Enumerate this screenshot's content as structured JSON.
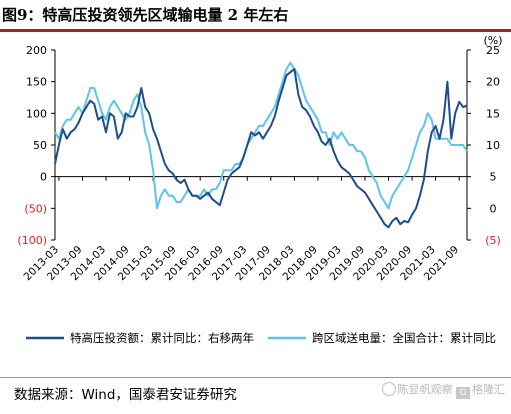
{
  "title": "图9：特高压投资领先区域输电量 2 年左右",
  "source": "数据来源：Wind，国泰君安证券研究",
  "watermark": {
    "text1": "陈显帆观察",
    "text2": "格隆汇",
    "badge": "G"
  },
  "colors": {
    "series1": "#1f4e8c",
    "series2": "#5ec4ea",
    "negative": "#e02020",
    "axis": "#000000",
    "rule": "#b11c1c"
  },
  "chart_data": {
    "type": "line",
    "left_axis": {
      "unit": "",
      "ticks": [
        -100,
        -50,
        0,
        50,
        100,
        150,
        200
      ],
      "tick_labels": [
        "(100)",
        "(50)",
        "0",
        "50",
        "100",
        "150",
        "200"
      ],
      "ylim": [
        -100,
        200
      ]
    },
    "right_axis": {
      "unit": "(%)",
      "ticks": [
        -5,
        0,
        5,
        10,
        15,
        20,
        25
      ],
      "tick_labels": [
        "(5)",
        "0",
        "5",
        "10",
        "15",
        "20",
        "25"
      ],
      "ylim": [
        -5,
        25
      ]
    },
    "x_ticks": [
      "2013-03",
      "2013-09",
      "2014-03",
      "2014-09",
      "2015-03",
      "2015-09",
      "2016-03",
      "2016-09",
      "2017-03",
      "2017-09",
      "2018-03",
      "2018-09",
      "2019-03",
      "2019-09",
      "2020-03",
      "2020-09",
      "2021-03",
      "2021-09"
    ],
    "series": [
      {
        "name": "特高压投资额：累计同比：右移两年",
        "axis": "left",
        "points": [
          [
            "2013-02",
            20
          ],
          [
            "2013-03",
            50
          ],
          [
            "2013-04",
            75
          ],
          [
            "2013-05",
            60
          ],
          [
            "2013-06",
            70
          ],
          [
            "2013-07",
            75
          ],
          [
            "2013-08",
            85
          ],
          [
            "2013-09",
            100
          ],
          [
            "2013-10",
            110
          ],
          [
            "2013-11",
            120
          ],
          [
            "2013-12",
            115
          ],
          [
            "2014-01",
            90
          ],
          [
            "2014-02",
            95
          ],
          [
            "2014-03",
            70
          ],
          [
            "2014-04",
            100
          ],
          [
            "2014-05",
            95
          ],
          [
            "2014-06",
            60
          ],
          [
            "2014-07",
            70
          ],
          [
            "2014-08",
            100
          ],
          [
            "2014-09",
            95
          ],
          [
            "2014-10",
            95
          ],
          [
            "2014-11",
            110
          ],
          [
            "2014-12",
            140
          ],
          [
            "2015-01",
            110
          ],
          [
            "2015-02",
            100
          ],
          [
            "2015-03",
            75
          ],
          [
            "2015-04",
            60
          ],
          [
            "2015-05",
            40
          ],
          [
            "2015-06",
            20
          ],
          [
            "2015-07",
            10
          ],
          [
            "2015-08",
            5
          ],
          [
            "2015-09",
            -5
          ],
          [
            "2015-10",
            -10
          ],
          [
            "2015-11",
            -5
          ],
          [
            "2015-12",
            -20
          ],
          [
            "2016-01",
            -30
          ],
          [
            "2016-02",
            -30
          ],
          [
            "2016-03",
            -35
          ],
          [
            "2016-04",
            -30
          ],
          [
            "2016-05",
            -25
          ],
          [
            "2016-06",
            -35
          ],
          [
            "2016-07",
            -40
          ],
          [
            "2016-08",
            -45
          ],
          [
            "2016-09",
            -25
          ],
          [
            "2016-10",
            -5
          ],
          [
            "2016-11",
            5
          ],
          [
            "2016-12",
            10
          ],
          [
            "2017-01",
            15
          ],
          [
            "2017-02",
            30
          ],
          [
            "2017-03",
            50
          ],
          [
            "2017-04",
            70
          ],
          [
            "2017-05",
            65
          ],
          [
            "2017-06",
            70
          ],
          [
            "2017-07",
            60
          ],
          [
            "2017-08",
            70
          ],
          [
            "2017-09",
            80
          ],
          [
            "2017-10",
            95
          ],
          [
            "2017-11",
            120
          ],
          [
            "2017-12",
            140
          ],
          [
            "2018-01",
            160
          ],
          [
            "2018-02",
            165
          ],
          [
            "2018-03",
            170
          ],
          [
            "2018-04",
            130
          ],
          [
            "2018-05",
            110
          ],
          [
            "2018-06",
            105
          ],
          [
            "2018-07",
            95
          ],
          [
            "2018-08",
            80
          ],
          [
            "2018-09",
            70
          ],
          [
            "2018-10",
            55
          ],
          [
            "2018-11",
            50
          ],
          [
            "2018-12",
            60
          ],
          [
            "2019-01",
            40
          ],
          [
            "2019-02",
            25
          ],
          [
            "2019-03",
            15
          ],
          [
            "2019-04",
            10
          ],
          [
            "2019-05",
            5
          ],
          [
            "2019-06",
            -5
          ],
          [
            "2019-07",
            -15
          ],
          [
            "2019-08",
            -20
          ],
          [
            "2019-09",
            -25
          ],
          [
            "2019-10",
            -35
          ],
          [
            "2019-11",
            -45
          ],
          [
            "2019-12",
            -55
          ],
          [
            "2020-01",
            -65
          ],
          [
            "2020-02",
            -75
          ],
          [
            "2020-03",
            -80
          ],
          [
            "2020-04",
            -70
          ],
          [
            "2020-05",
            -65
          ],
          [
            "2020-06",
            -75
          ],
          [
            "2020-07",
            -70
          ],
          [
            "2020-08",
            -72
          ],
          [
            "2020-09",
            -60
          ],
          [
            "2020-10",
            -50
          ],
          [
            "2020-11",
            -30
          ],
          [
            "2020-12",
            -5
          ],
          [
            "2021-01",
            40
          ],
          [
            "2021-02",
            70
          ],
          [
            "2021-03",
            80
          ],
          [
            "2021-04",
            60
          ],
          [
            "2021-05",
            90
          ],
          [
            "2021-06",
            150
          ],
          [
            "2021-07",
            60
          ],
          [
            "2021-08",
            100
          ],
          [
            "2021-09",
            118
          ],
          [
            "2021-10",
            110
          ],
          [
            "2021-11",
            112
          ]
        ]
      },
      {
        "name": "跨区域送电量：全国合计：累计同比",
        "axis": "right",
        "points": [
          [
            "2013-02",
            12
          ],
          [
            "2013-03",
            11
          ],
          [
            "2013-04",
            13
          ],
          [
            "2013-05",
            14
          ],
          [
            "2013-06",
            14
          ],
          [
            "2013-07",
            15
          ],
          [
            "2013-08",
            16
          ],
          [
            "2013-09",
            15
          ],
          [
            "2013-10",
            17
          ],
          [
            "2013-11",
            19
          ],
          [
            "2013-12",
            19
          ],
          [
            "2014-01",
            17
          ],
          [
            "2014-02",
            15
          ],
          [
            "2014-03",
            14
          ],
          [
            "2014-04",
            16
          ],
          [
            "2014-05",
            17
          ],
          [
            "2014-06",
            16
          ],
          [
            "2014-07",
            15
          ],
          [
            "2014-08",
            14
          ],
          [
            "2014-09",
            15
          ],
          [
            "2014-10",
            17
          ],
          [
            "2014-11",
            18
          ],
          [
            "2014-12",
            16
          ],
          [
            "2015-01",
            12
          ],
          [
            "2015-02",
            10
          ],
          [
            "2015-03",
            6
          ],
          [
            "2015-04",
            0
          ],
          [
            "2015-05",
            2
          ],
          [
            "2015-06",
            3
          ],
          [
            "2015-07",
            2
          ],
          [
            "2015-08",
            2
          ],
          [
            "2015-09",
            1
          ],
          [
            "2015-10",
            1
          ],
          [
            "2015-11",
            2
          ],
          [
            "2015-12",
            3
          ],
          [
            "2016-01",
            2
          ],
          [
            "2016-02",
            2
          ],
          [
            "2016-03",
            2
          ],
          [
            "2016-04",
            3
          ],
          [
            "2016-05",
            2
          ],
          [
            "2016-06",
            3
          ],
          [
            "2016-07",
            3
          ],
          [
            "2016-08",
            4
          ],
          [
            "2016-09",
            6
          ],
          [
            "2016-10",
            6
          ],
          [
            "2016-11",
            6
          ],
          [
            "2016-12",
            7
          ],
          [
            "2017-01",
            7
          ],
          [
            "2017-02",
            8
          ],
          [
            "2017-03",
            10
          ],
          [
            "2017-04",
            11
          ],
          [
            "2017-05",
            12
          ],
          [
            "2017-06",
            13
          ],
          [
            "2017-07",
            13
          ],
          [
            "2017-08",
            14
          ],
          [
            "2017-09",
            15
          ],
          [
            "2017-10",
            16
          ],
          [
            "2017-11",
            18
          ],
          [
            "2017-12",
            20
          ],
          [
            "2018-01",
            22
          ],
          [
            "2018-02",
            23
          ],
          [
            "2018-03",
            22
          ],
          [
            "2018-04",
            21
          ],
          [
            "2018-05",
            19
          ],
          [
            "2018-06",
            17
          ],
          [
            "2018-07",
            16
          ],
          [
            "2018-08",
            15
          ],
          [
            "2018-09",
            14
          ],
          [
            "2018-10",
            12
          ],
          [
            "2018-11",
            12
          ],
          [
            "2018-12",
            10
          ],
          [
            "2019-01",
            12
          ],
          [
            "2019-02",
            11
          ],
          [
            "2019-03",
            12
          ],
          [
            "2019-04",
            11
          ],
          [
            "2019-05",
            10
          ],
          [
            "2019-06",
            10
          ],
          [
            "2019-07",
            9
          ],
          [
            "2019-08",
            9
          ],
          [
            "2019-09",
            8
          ],
          [
            "2019-10",
            6
          ],
          [
            "2019-11",
            5
          ],
          [
            "2019-12",
            4
          ],
          [
            "2020-01",
            2
          ],
          [
            "2020-02",
            1
          ],
          [
            "2020-03",
            0
          ],
          [
            "2020-04",
            2
          ],
          [
            "2020-05",
            3
          ],
          [
            "2020-06",
            4
          ],
          [
            "2020-07",
            5
          ],
          [
            "2020-08",
            6
          ],
          [
            "2020-09",
            8
          ],
          [
            "2020-10",
            10
          ],
          [
            "2020-11",
            12
          ],
          [
            "2020-12",
            13
          ],
          [
            "2021-01",
            15
          ],
          [
            "2021-02",
            14
          ],
          [
            "2021-03",
            11
          ],
          [
            "2021-04",
            11
          ],
          [
            "2021-05",
            11
          ],
          [
            "2021-06",
            11
          ],
          [
            "2021-07",
            10
          ],
          [
            "2021-08",
            10
          ],
          [
            "2021-09",
            10
          ],
          [
            "2021-10",
            10
          ],
          [
            "2021-11",
            9
          ]
        ]
      }
    ],
    "legend_position": "bottom",
    "grid": false
  }
}
